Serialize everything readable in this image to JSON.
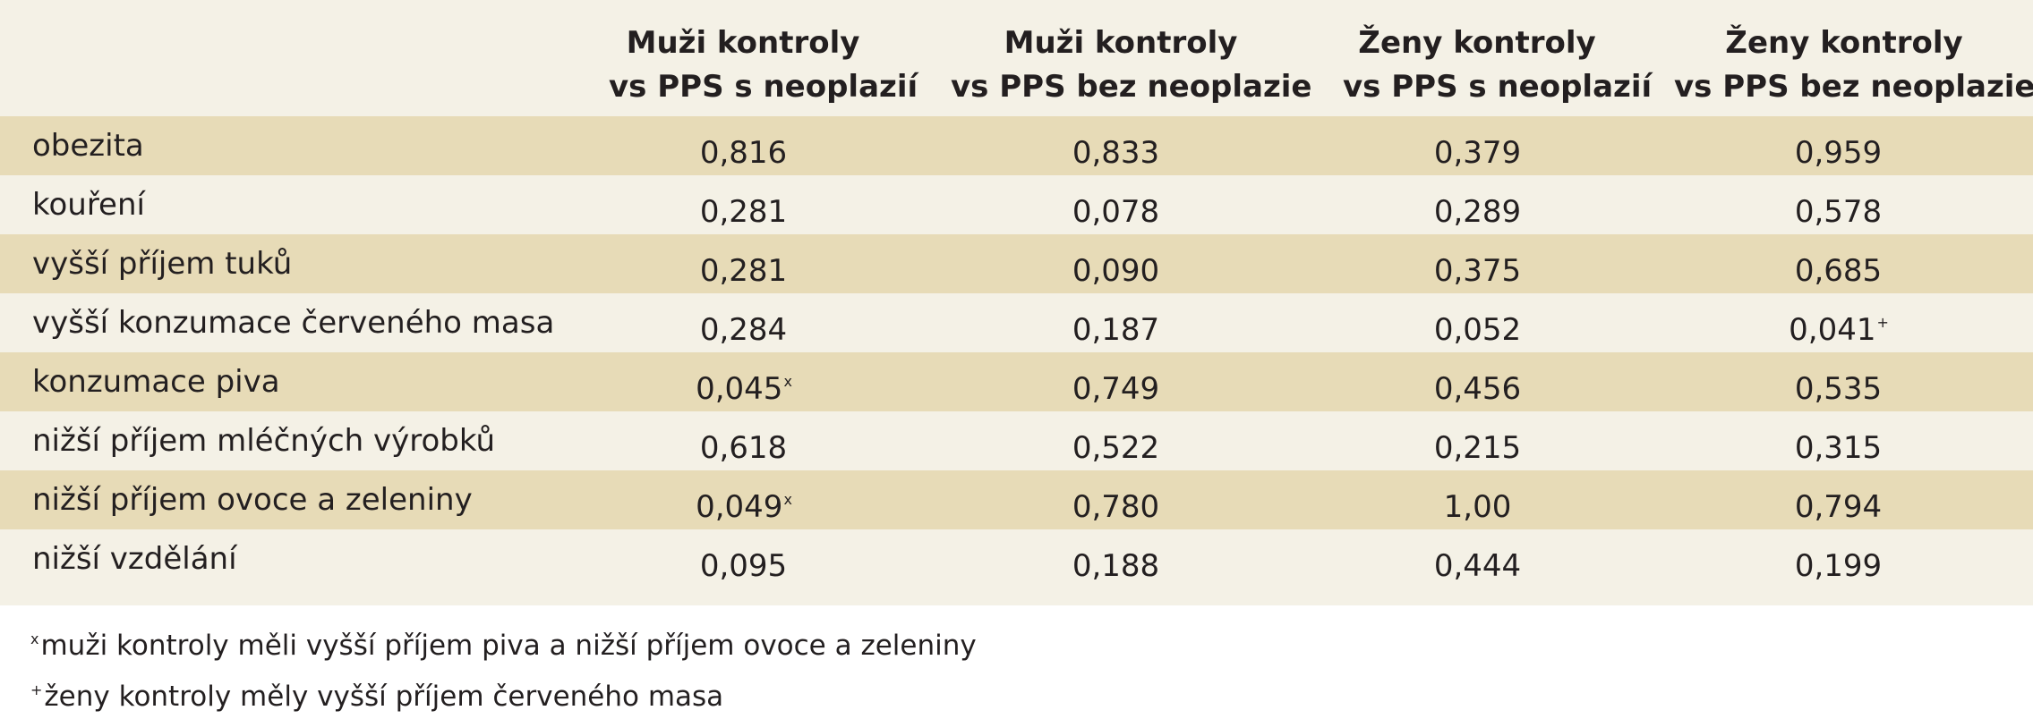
{
  "columns": [
    {
      "line1": "Muži kontroly",
      "line2": "vs PPS s neoplazií"
    },
    {
      "line1": "Muži kontroly",
      "line2": "vs PPS bez neoplazie"
    },
    {
      "line1": "Ženy kontroly",
      "line2": "vs PPS s neoplazií"
    },
    {
      "line1": "Ženy kontroly",
      "line2": "vs PPS bez neoplazie"
    }
  ],
  "rows": [
    {
      "label": "obezita",
      "values": [
        "0,816",
        "0,833",
        "0,379",
        "0,959"
      ],
      "marks": [
        "",
        "",
        "",
        ""
      ]
    },
    {
      "label": "kouření",
      "values": [
        "0,281",
        "0,078",
        "0,289",
        "0,578"
      ],
      "marks": [
        "",
        "",
        "",
        ""
      ]
    },
    {
      "label": "vyšší příjem tuků",
      "values": [
        "0,281",
        "0,090",
        "0,375",
        "0,685"
      ],
      "marks": [
        "",
        "",
        "",
        ""
      ]
    },
    {
      "label": "vyšší konzumace červeného masa",
      "values": [
        "0,284",
        "0,187",
        "0,052",
        "0,041"
      ],
      "marks": [
        "",
        "",
        "",
        "+"
      ]
    },
    {
      "label": "konzumace piva",
      "values": [
        "0,045",
        "0,749",
        "0,456",
        "0,535"
      ],
      "marks": [
        "x",
        "",
        "",
        ""
      ]
    },
    {
      "label": "nižší příjem mléčných výrobků",
      "values": [
        "0,618",
        "0,522",
        "0,215",
        "0,315"
      ],
      "marks": [
        "",
        "",
        "",
        ""
      ]
    },
    {
      "label": "nižší příjem ovoce a zeleniny",
      "values": [
        "0,049",
        "0,780",
        "1,00",
        "0,794"
      ],
      "marks": [
        "x",
        "",
        "",
        ""
      ]
    },
    {
      "label": "nižší vzdělání",
      "values": [
        "0,095",
        "0,188",
        "0,444",
        "0,199"
      ],
      "marks": [
        "",
        "",
        "",
        ""
      ]
    }
  ],
  "footnotes": [
    {
      "mark": "x",
      "text": "muži kontroly měli vyšší příjem piva a nižší příjem ovoce a zeleniny"
    },
    {
      "mark": "+",
      "text": "ženy kontroly měly vyšší příjem červeného masa"
    }
  ],
  "colors": {
    "odd_row": "#e7dbb7",
    "even_row": "#f4f1e6",
    "text": "#231f20"
  }
}
